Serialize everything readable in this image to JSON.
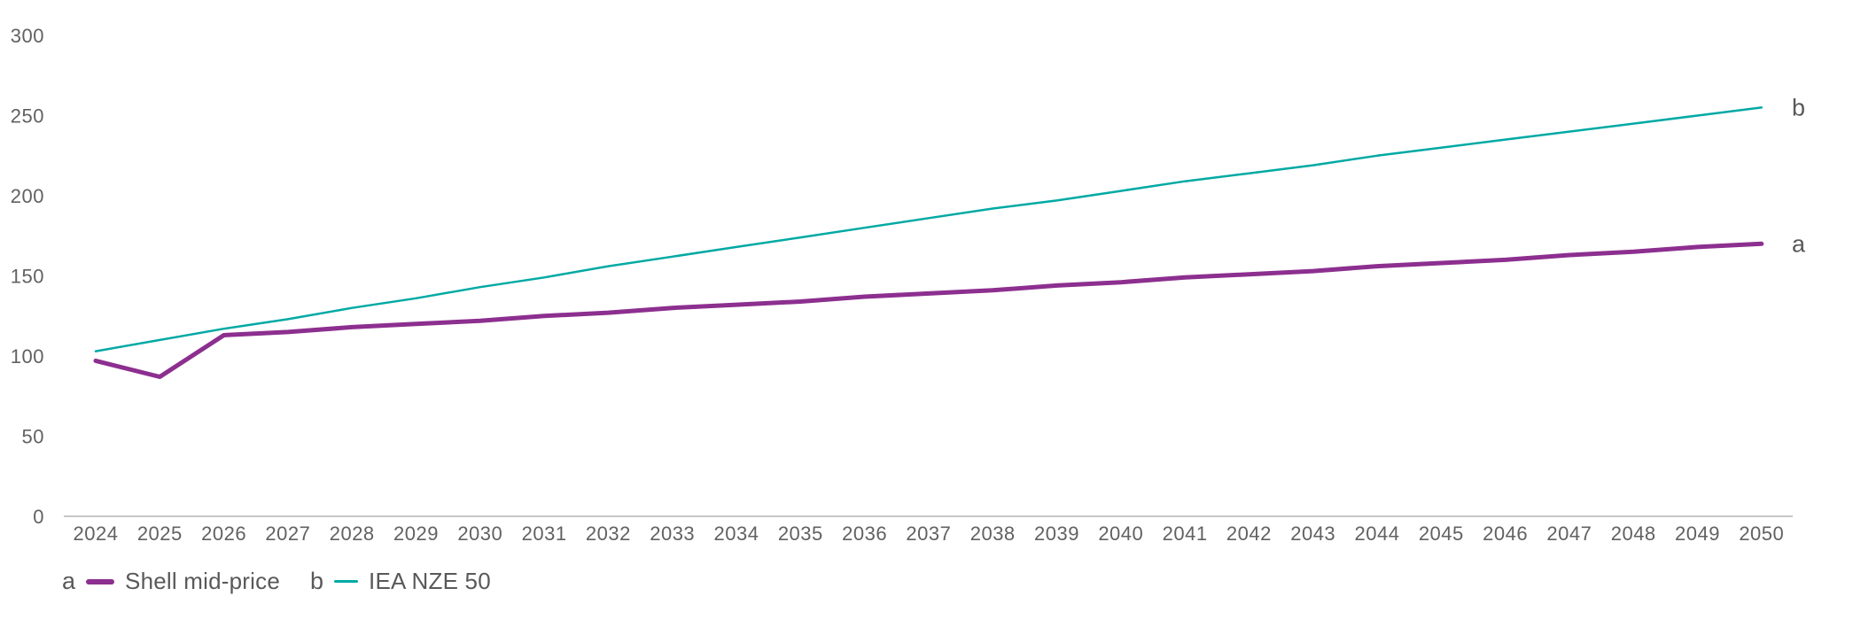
{
  "colors": {
    "series_a_purple": "#8C2F8F",
    "series_b_teal": "#00A9A4",
    "axis_text": "#616161",
    "axis_line": "#C6C6C6",
    "label_text": "#595959",
    "background": "#FFFFFF"
  },
  "chart_data": {
    "type": "line",
    "title": "",
    "xlabel": "",
    "ylabel": "",
    "grid": false,
    "legend_position": "bottom-left",
    "ylim": [
      0,
      300
    ],
    "yticks": [
      0,
      50,
      100,
      150,
      200,
      250,
      300
    ],
    "x": [
      2024,
      2025,
      2026,
      2027,
      2028,
      2029,
      2030,
      2031,
      2032,
      2033,
      2034,
      2035,
      2036,
      2037,
      2038,
      2039,
      2040,
      2041,
      2042,
      2043,
      2044,
      2045,
      2046,
      2047,
      2048,
      2049,
      2050
    ],
    "series": [
      {
        "name": "Shell mid-price",
        "letter": "a",
        "color": "#8C2F8F",
        "stroke_width": 5,
        "values": [
          97,
          87,
          113,
          115,
          118,
          120,
          122,
          125,
          127,
          130,
          132,
          134,
          137,
          139,
          141,
          144,
          146,
          149,
          151,
          153,
          156,
          158,
          160,
          163,
          165,
          168,
          170
        ]
      },
      {
        "name": "IEA NZE 50",
        "letter": "b",
        "color": "#00A9A4",
        "stroke_width": 2.5,
        "values": [
          103,
          110,
          117,
          123,
          130,
          136,
          143,
          149,
          156,
          162,
          168,
          174,
          180,
          186,
          192,
          197,
          203,
          209,
          214,
          219,
          225,
          230,
          235,
          240,
          245,
          250,
          255
        ]
      }
    ]
  },
  "legend": {
    "items": [
      {
        "letter": "a",
        "label": "Shell mid-price"
      },
      {
        "letter": "b",
        "label": "IEA NZE 50"
      }
    ]
  }
}
